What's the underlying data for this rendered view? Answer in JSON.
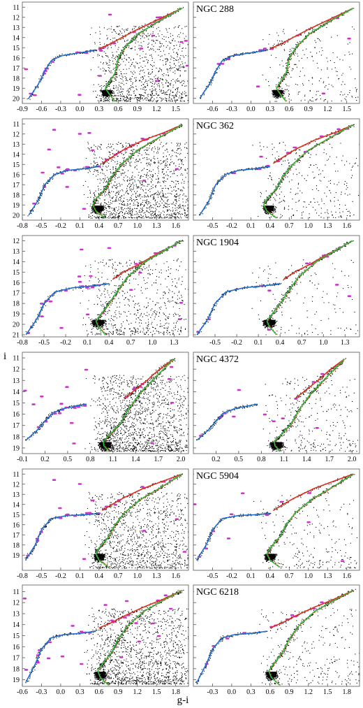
{
  "figure": {
    "xlabel": "g-i",
    "ylabel": "i",
    "colors": {
      "field_stars": "#000000",
      "highlighted_stars": "#cc33cc",
      "iso_blue": "#1f6fd6",
      "iso_red": "#e0301e",
      "iso_green": "#2fbf3a"
    }
  },
  "chart_data": [
    {
      "type": "scatter",
      "cluster": "NGC 288",
      "x_range": [
        -0.9,
        1.7
      ],
      "y_range": [
        20.5,
        10.5
      ],
      "left_xticks": [
        -0.9,
        -0.6,
        -0.3,
        0.0,
        0.3,
        0.6,
        0.9,
        1.2,
        1.5
      ],
      "right_xticks": [
        -0.6,
        -0.3,
        0.0,
        0.3,
        0.6,
        0.9,
        1.2,
        1.5
      ],
      "yticks": [
        11,
        12,
        13,
        14,
        15,
        16,
        17,
        18,
        19,
        20
      ],
      "isochrones": [
        {
          "color": "blue",
          "x": [
            -0.8,
            -0.65,
            -0.55,
            -0.45,
            -0.3,
            -0.1,
            0.1,
            0.25
          ],
          "y": [
            20.0,
            18.6,
            17.3,
            16.3,
            15.8,
            15.6,
            15.4,
            15.2
          ]
        },
        {
          "color": "red",
          "x": [
            0.3,
            0.45,
            0.6,
            0.9,
            1.2,
            1.6
          ],
          "y": [
            15.1,
            14.7,
            14.2,
            13.2,
            12.3,
            11.1
          ]
        },
        {
          "color": "green",
          "x": [
            0.55,
            0.45,
            0.4,
            0.45,
            0.55,
            0.6,
            0.7,
            0.9,
            1.2,
            1.6
          ],
          "y": [
            20.3,
            19.5,
            19.0,
            18.5,
            17.5,
            16.0,
            15.0,
            13.7,
            12.5,
            11.1
          ]
        }
      ],
      "turnoff": {
        "x": 0.42,
        "y": 19.2
      },
      "field_spread": 0.75
    },
    {
      "type": "scatter",
      "cluster": "NGC 362",
      "x_range": [
        -0.8,
        1.8
      ],
      "y_range": [
        20.5,
        10.5
      ],
      "left_xticks": [
        -0.8,
        -0.5,
        -0.2,
        0.1,
        0.4,
        0.7,
        1.0,
        1.3,
        1.6
      ],
      "right_xticks": [
        -0.5,
        -0.2,
        0.1,
        0.4,
        0.7,
        1.0,
        1.3,
        1.6
      ],
      "yticks": [
        11,
        12,
        13,
        14,
        15,
        16,
        17,
        18,
        19,
        20
      ],
      "isochrones": [
        {
          "color": "blue",
          "x": [
            -0.7,
            -0.55,
            -0.45,
            -0.3,
            -0.1,
            0.2,
            0.4
          ],
          "y": [
            20.0,
            18.5,
            17.0,
            16.0,
            15.6,
            15.4,
            15.2
          ]
        },
        {
          "color": "red",
          "x": [
            0.45,
            0.6,
            0.8,
            1.1,
            1.4,
            1.7
          ],
          "y": [
            14.9,
            14.3,
            13.5,
            12.6,
            11.9,
            11.1
          ]
        },
        {
          "color": "green",
          "x": [
            0.5,
            0.35,
            0.3,
            0.35,
            0.5,
            0.6,
            0.75,
            1.0,
            1.3,
            1.7
          ],
          "y": [
            20.3,
            19.6,
            19.0,
            18.4,
            17.4,
            16.2,
            15.0,
            13.6,
            12.5,
            11.1
          ]
        }
      ],
      "turnoff": {
        "x": 0.38,
        "y": 19.1
      },
      "field_spread": 1.0
    },
    {
      "type": "scatter",
      "cluster": "NGC 1904",
      "x_range": [
        -0.8,
        1.5
      ],
      "y_range": [
        21.2,
        11.5
      ],
      "left_xticks": [
        -0.8,
        -0.5,
        -0.2,
        0.1,
        0.4,
        0.7,
        1.0,
        1.3
      ],
      "right_xticks": [
        -0.5,
        -0.2,
        0.1,
        0.4,
        0.7,
        1.0,
        1.3
      ],
      "yticks": [
        12,
        13,
        14,
        15,
        16,
        17,
        18,
        19,
        20,
        21
      ],
      "isochrones": [
        {
          "color": "blue",
          "x": [
            -0.75,
            -0.6,
            -0.5,
            -0.35,
            -0.1,
            0.2,
            0.4
          ],
          "y": [
            21.0,
            19.5,
            18.0,
            16.9,
            16.5,
            16.3,
            16.1
          ]
        },
        {
          "color": "red",
          "x": [
            0.45,
            0.6,
            0.8,
            1.0,
            1.2,
            1.4
          ],
          "y": [
            15.7,
            15.0,
            14.3,
            13.5,
            12.8,
            12.0
          ]
        },
        {
          "color": "green",
          "x": [
            0.35,
            0.25,
            0.22,
            0.27,
            0.4,
            0.52,
            0.65,
            0.9,
            1.15,
            1.4
          ],
          "y": [
            21.0,
            20.2,
            19.7,
            19.2,
            18.0,
            16.8,
            15.5,
            14.0,
            13.0,
            12.0
          ]
        }
      ],
      "turnoff": {
        "x": 0.25,
        "y": 19.6
      },
      "field_spread": 0.45
    },
    {
      "type": "scatter",
      "cluster": "NGC 4372",
      "x_range": [
        -0.1,
        2.1
      ],
      "y_range": [
        19.5,
        10.5
      ],
      "left_xticks": [
        -0.1,
        0.2,
        0.5,
        0.8,
        1.1,
        1.4,
        1.7,
        2.0
      ],
      "right_xticks": [
        0.2,
        0.5,
        0.8,
        1.1,
        1.4,
        1.7,
        2.0
      ],
      "yticks": [
        11,
        12,
        13,
        14,
        15,
        16,
        17,
        18,
        19
      ],
      "isochrones": [
        {
          "color": "blue",
          "x": [
            -0.05,
            0.1,
            0.2,
            0.3,
            0.45,
            0.6,
            0.75
          ],
          "y": [
            18.3,
            17.4,
            16.6,
            15.9,
            15.5,
            15.3,
            15.1
          ]
        },
        {
          "color": "red",
          "x": [
            1.25,
            1.4,
            1.55,
            1.7,
            1.9
          ],
          "y": [
            14.6,
            13.8,
            13.0,
            12.1,
            11.1
          ]
        },
        {
          "color": "green",
          "x": [
            1.05,
            0.98,
            0.97,
            1.05,
            1.2,
            1.3,
            1.45,
            1.65,
            1.9
          ],
          "y": [
            19.3,
            18.8,
            18.4,
            17.9,
            16.8,
            15.6,
            14.2,
            12.8,
            11.1
          ]
        }
      ],
      "turnoff": {
        "x": 1.0,
        "y": 18.5
      },
      "field_spread": 1.0
    },
    {
      "type": "scatter",
      "cluster": "NGC 5904",
      "x_range": [
        -0.8,
        1.8
      ],
      "y_range": [
        20.5,
        10.5
      ],
      "left_xticks": [
        -0.8,
        -0.5,
        -0.2,
        0.1,
        0.4,
        0.7,
        1.0,
        1.3,
        1.6
      ],
      "right_xticks": [
        -0.5,
        -0.2,
        0.1,
        0.4,
        0.7,
        1.0,
        1.3,
        1.6
      ],
      "yticks": [
        11,
        12,
        13,
        14,
        15,
        16,
        17,
        18,
        19
      ],
      "isochrones": [
        {
          "color": "blue",
          "x": [
            -0.75,
            -0.6,
            -0.5,
            -0.35,
            -0.1,
            0.2,
            0.4
          ],
          "y": [
            19.5,
            18.0,
            16.5,
            15.4,
            15.1,
            15.0,
            14.9
          ]
        },
        {
          "color": "red",
          "x": [
            0.45,
            0.6,
            0.8,
            1.1,
            1.4,
            1.7
          ],
          "y": [
            14.6,
            14.0,
            13.3,
            12.4,
            11.7,
            11.0
          ]
        },
        {
          "color": "green",
          "x": [
            0.55,
            0.4,
            0.35,
            0.4,
            0.55,
            0.65,
            0.8,
            1.05,
            1.35,
            1.7
          ],
          "y": [
            20.2,
            19.5,
            18.9,
            18.3,
            17.2,
            16.0,
            14.8,
            13.5,
            12.4,
            11.0
          ]
        }
      ],
      "turnoff": {
        "x": 0.4,
        "y": 18.9
      },
      "field_spread": 0.8
    },
    {
      "type": "scatter",
      "cluster": "NGC 6218",
      "x_range": [
        -0.6,
        2.0
      ],
      "y_range": [
        19.6,
        10.4
      ],
      "left_xticks": [
        -0.6,
        -0.3,
        0.0,
        0.3,
        0.6,
        0.9,
        1.2,
        1.5,
        1.8
      ],
      "right_xticks": [
        -0.3,
        0.0,
        0.3,
        0.6,
        0.9,
        1.2,
        1.5,
        1.8
      ],
      "yticks": [
        11,
        12,
        13,
        14,
        15,
        16,
        17,
        18,
        19
      ],
      "isochrones": [
        {
          "color": "blue",
          "x": [
            -0.55,
            -0.4,
            -0.3,
            -0.15,
            0.05,
            0.3,
            0.55
          ],
          "y": [
            19.3,
            17.6,
            16.2,
            15.2,
            14.9,
            14.8,
            14.6
          ]
        },
        {
          "color": "red",
          "x": [
            0.6,
            0.8,
            1.0,
            1.3,
            1.6,
            1.9
          ],
          "y": [
            14.3,
            13.8,
            13.2,
            12.4,
            11.7,
            10.9
          ]
        },
        {
          "color": "green",
          "x": [
            0.75,
            0.62,
            0.58,
            0.65,
            0.8,
            0.9,
            1.05,
            1.3,
            1.6,
            1.9
          ],
          "y": [
            19.5,
            18.8,
            18.2,
            17.6,
            16.5,
            15.3,
            14.1,
            12.8,
            11.8,
            10.9
          ]
        }
      ],
      "turnoff": {
        "x": 0.62,
        "y": 18.3
      },
      "field_spread": 1.0
    }
  ]
}
